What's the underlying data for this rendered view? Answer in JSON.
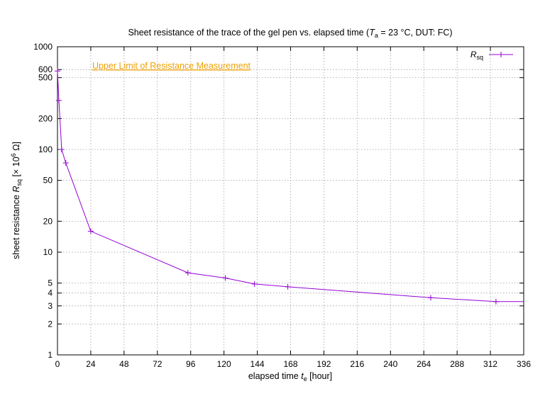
{
  "chart_data": {
    "type": "line",
    "title": {
      "prefix": "Sheet resistance of the trace of the gel pen vs. elapsed time (",
      "sym": "T",
      "sub": "a",
      "suffix": " = 23 °C, DUT: FC)"
    },
    "xlabel": {
      "prefix": "elapsed time ",
      "sym": "t",
      "sub": "e",
      "suffix": " [hour]"
    },
    "ylabel": {
      "prefix": "sheet resistance ",
      "sym": "R",
      "sub": "sq",
      "mid": " [× 10",
      "sup": "6",
      "suffix": " Ω]"
    },
    "xlim": [
      0,
      336
    ],
    "ylim": [
      1,
      1000
    ],
    "yscale": "log",
    "grid": true,
    "xticks": [
      0,
      24,
      48,
      72,
      96,
      120,
      144,
      168,
      192,
      216,
      240,
      264,
      288,
      312,
      336
    ],
    "yticks": [
      1,
      2,
      3,
      4,
      5,
      10,
      20,
      50,
      100,
      200,
      500,
      600,
      1000
    ],
    "legend": {
      "position": "top-right"
    },
    "series": [
      {
        "name": {
          "sym": "R",
          "sub": "sq"
        },
        "color": "#9400d3",
        "x": [
          0,
          1,
          3,
          6,
          24,
          94,
          121,
          142,
          166,
          269,
          316,
          336
        ],
        "y": [
          580,
          300,
          100,
          74,
          16,
          6.3,
          5.6,
          4.9,
          4.6,
          3.6,
          3.3,
          3.3
        ],
        "marker_count": 11
      }
    ],
    "annotation": {
      "text": "Upper Limit of Resistance Measurement",
      "y": 600,
      "color": "#f0a000"
    }
  }
}
